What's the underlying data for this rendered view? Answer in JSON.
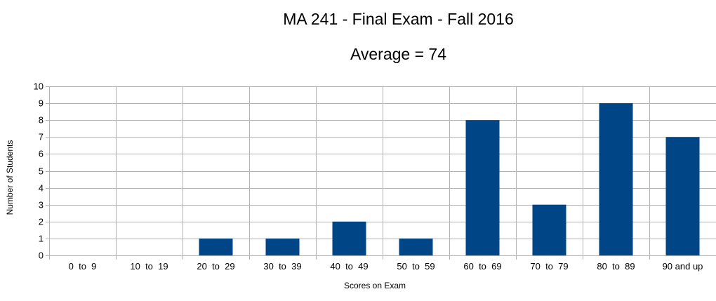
{
  "chart_data": {
    "type": "bar",
    "title": "MA 241 - Final Exam - Fall 2016",
    "subtitle": "Average = 74",
    "xlabel": "Scores on Exam",
    "ylabel": "Number of Students",
    "categories": [
      "0  to  9",
      "10  to  19",
      "20  to  29",
      "30  to  39",
      "40  to  49",
      "50  to  59",
      "60  to  69",
      "70  to  79",
      "80  to  89",
      "90 and up"
    ],
    "values": [
      0,
      0,
      1,
      1,
      2,
      1,
      8,
      3,
      9,
      7
    ],
    "ylim": [
      0,
      10
    ],
    "yticks": [
      0,
      1,
      2,
      3,
      4,
      5,
      6,
      7,
      8,
      9,
      10
    ],
    "grid": true,
    "legend": "none",
    "colors": {
      "bar": "#004586",
      "grid": "#b3b3b3",
      "axis": "#b3b3b3"
    }
  }
}
